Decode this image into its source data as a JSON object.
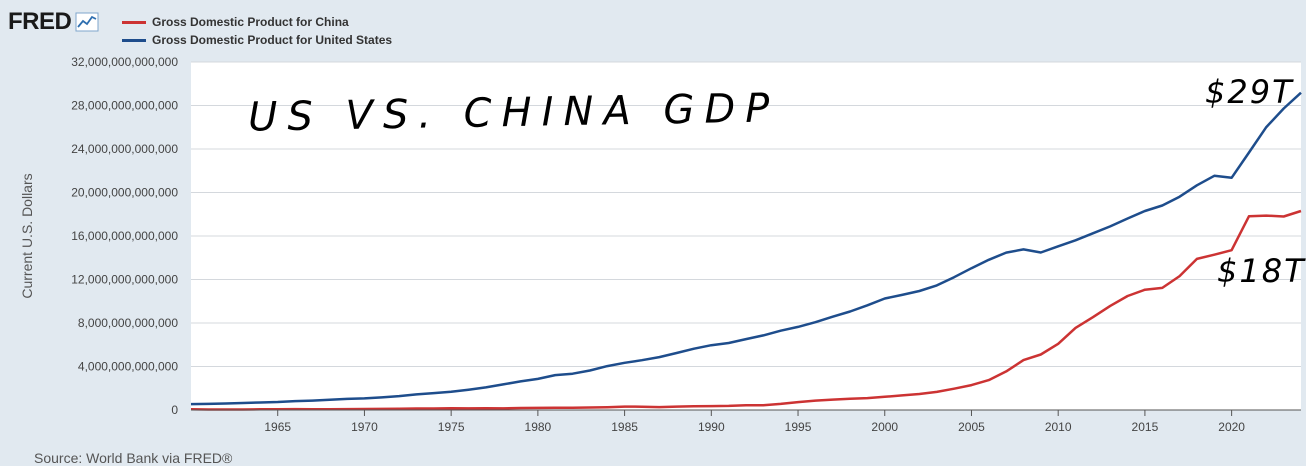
{
  "header": {
    "logo_text": "FRED",
    "logo_icon": "trend-line-icon"
  },
  "legend": [
    {
      "label": "Gross Domestic Product for China",
      "color": "#cc3333"
    },
    {
      "label": "Gross Domestic Product for United States",
      "color": "#1e4d8c"
    }
  ],
  "source": "Source: World Bank via FRED®",
  "chart_data": {
    "type": "line",
    "ylabel": "Current U.S. Dollars",
    "xlabel": "",
    "xlim": [
      1960,
      2024
    ],
    "ylim": [
      0,
      32000000000000
    ],
    "grid": true,
    "legend_position": "top-left",
    "x_ticks": [
      1965,
      1970,
      1975,
      1980,
      1985,
      1990,
      1995,
      2000,
      2005,
      2010,
      2015,
      2020
    ],
    "y_ticks": [
      {
        "value": 0,
        "label": "0"
      },
      {
        "value": 4000000000000,
        "label": "4,000,000,000,000"
      },
      {
        "value": 8000000000000,
        "label": "8,000,000,000,000"
      },
      {
        "value": 12000000000000,
        "label": "12,000,000,000,000"
      },
      {
        "value": 16000000000000,
        "label": "16,000,000,000,000"
      },
      {
        "value": 20000000000000,
        "label": "20,000,000,000,000"
      },
      {
        "value": 24000000000000,
        "label": "24,000,000,000,000"
      },
      {
        "value": 28000000000000,
        "label": "28,000,000,000,000"
      },
      {
        "value": 32000000000000,
        "label": "32,000,000,000,000"
      }
    ],
    "x": [
      1960,
      1961,
      1962,
      1963,
      1964,
      1965,
      1966,
      1967,
      1968,
      1969,
      1970,
      1971,
      1972,
      1973,
      1974,
      1975,
      1976,
      1977,
      1978,
      1979,
      1980,
      1981,
      1982,
      1983,
      1984,
      1985,
      1986,
      1987,
      1988,
      1989,
      1990,
      1991,
      1992,
      1993,
      1994,
      1995,
      1996,
      1997,
      1998,
      1999,
      2000,
      2001,
      2002,
      2003,
      2004,
      2005,
      2006,
      2007,
      2008,
      2009,
      2010,
      2011,
      2012,
      2013,
      2014,
      2015,
      2016,
      2017,
      2018,
      2019,
      2020,
      2021,
      2022,
      2023,
      2024
    ],
    "series": [
      {
        "name": "Gross Domestic Product for China",
        "color": "#cc3333",
        "values": [
          0.06,
          0.05,
          0.05,
          0.05,
          0.06,
          0.07,
          0.08,
          0.07,
          0.07,
          0.08,
          0.09,
          0.1,
          0.11,
          0.14,
          0.14,
          0.16,
          0.15,
          0.17,
          0.15,
          0.18,
          0.19,
          0.2,
          0.21,
          0.23,
          0.26,
          0.31,
          0.3,
          0.27,
          0.31,
          0.35,
          0.36,
          0.38,
          0.43,
          0.44,
          0.56,
          0.73,
          0.86,
          0.96,
          1.03,
          1.09,
          1.21,
          1.34,
          1.47,
          1.66,
          1.96,
          2.29,
          2.75,
          3.55,
          4.59,
          5.1,
          6.09,
          7.55,
          8.53,
          9.57,
          10.48,
          11.06,
          11.23,
          12.31,
          13.89,
          14.28,
          14.69,
          17.82,
          17.88,
          17.79,
          18.3
        ]
      },
      {
        "name": "Gross Domestic Product for United States",
        "color": "#1e4d8c",
        "values": [
          0.54,
          0.56,
          0.6,
          0.64,
          0.69,
          0.74,
          0.82,
          0.86,
          0.94,
          1.02,
          1.07,
          1.16,
          1.28,
          1.43,
          1.55,
          1.68,
          1.87,
          2.08,
          2.35,
          2.63,
          2.86,
          3.21,
          3.34,
          3.63,
          4.04,
          4.34,
          4.58,
          4.86,
          5.24,
          5.64,
          5.96,
          6.16,
          6.52,
          6.86,
          7.29,
          7.64,
          8.07,
          8.58,
          9.06,
          9.63,
          10.25,
          10.58,
          10.94,
          11.46,
          12.21,
          13.04,
          13.81,
          14.47,
          14.77,
          14.48,
          15.05,
          15.6,
          16.25,
          16.88,
          17.61,
          18.3,
          18.8,
          19.61,
          20.66,
          21.54,
          21.35,
          23.68,
          26.01,
          27.72,
          29.18
        ]
      }
    ],
    "annotations": [
      "US VS. CHINA GDP",
      "$29T",
      "$18T"
    ]
  }
}
